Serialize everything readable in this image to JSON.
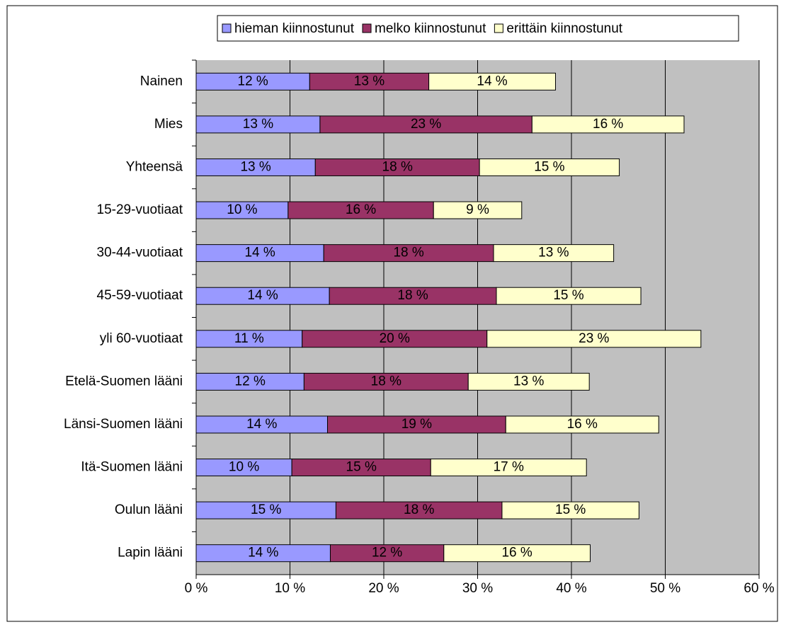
{
  "chart_data": {
    "type": "stacked-bar-horizontal",
    "categories": [
      "Nainen",
      "Mies",
      "Yhteensä",
      "15-29-vuotiaat",
      "30-44-vuotiaat",
      "45-59-vuotiaat",
      "yli 60-vuotiaat",
      "Etelä-Suomen lääni",
      "Länsi-Suomen lääni",
      "Itä-Suomen lääni",
      "Oulun lääni",
      "Lapin lääni"
    ],
    "series": [
      {
        "name": "hieman kiinnostunut",
        "color": "#9999ff",
        "values": [
          12.1,
          13.2,
          12.7,
          9.8,
          13.6,
          14.2,
          11.3,
          11.5,
          14.0,
          10.2,
          14.9,
          14.3
        ],
        "value_labels": [
          "12 %",
          "13 %",
          "13 %",
          "10 %",
          "14 %",
          "14 %",
          "11 %",
          "12 %",
          "14 %",
          "10 %",
          "15 %",
          "14 %"
        ]
      },
      {
        "name": "melko kiinnostunut",
        "color": "#993366",
        "values": [
          12.7,
          22.6,
          17.5,
          15.5,
          18.1,
          17.8,
          19.7,
          17.5,
          19.0,
          14.8,
          17.7,
          12.1
        ],
        "value_labels": [
          "13 %",
          "23 %",
          "18 %",
          "16 %",
          "18 %",
          "18 %",
          "20 %",
          "18 %",
          "19 %",
          "15 %",
          "18 %",
          "12 %"
        ]
      },
      {
        "name": "erittäin kiinnostunut",
        "color": "#ffffcc",
        "values": [
          13.5,
          16.2,
          14.9,
          9.4,
          12.8,
          15.4,
          22.8,
          12.9,
          16.3,
          16.6,
          14.6,
          15.6
        ],
        "value_labels": [
          "14 %",
          "16 %",
          "15 %",
          "9 %",
          "13 %",
          "15 %",
          "23 %",
          "13 %",
          "16 %",
          "17 %",
          "15 %",
          "16 %"
        ]
      }
    ],
    "xlim": [
      0,
      60
    ],
    "xticks": [
      {
        "value": 0,
        "label": "0 %"
      },
      {
        "value": 10,
        "label": "10 %"
      },
      {
        "value": 20,
        "label": "20 %"
      },
      {
        "value": 30,
        "label": "30 %"
      },
      {
        "value": 40,
        "label": "40 %"
      },
      {
        "value": 50,
        "label": "50 %"
      },
      {
        "value": 60,
        "label": "60 %"
      }
    ],
    "grid": true,
    "legend": "top"
  }
}
